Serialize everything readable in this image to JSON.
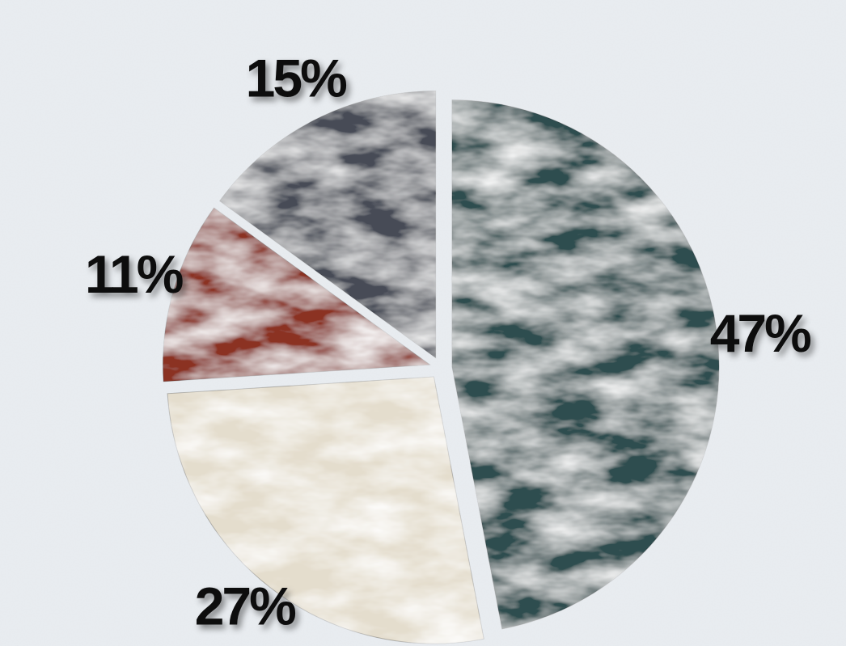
{
  "chart_data": {
    "type": "pie",
    "values": [
      47,
      27,
      11,
      15
    ],
    "value_labels": [
      "47%",
      "27%",
      "11%",
      "15%"
    ],
    "colors": [
      "#2e4e50",
      "#e4ddcd",
      "#8b3224",
      "#474c57"
    ]
  }
}
